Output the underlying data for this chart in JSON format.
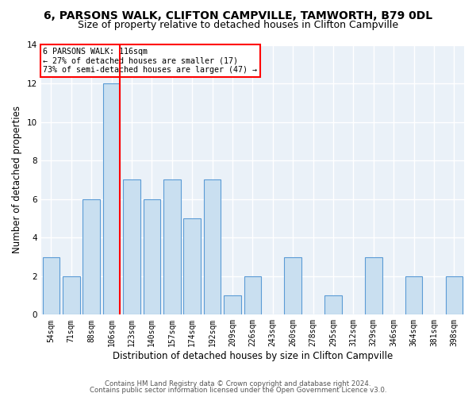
{
  "title1": "6, PARSONS WALK, CLIFTON CAMPVILLE, TAMWORTH, B79 0DL",
  "title2": "Size of property relative to detached houses in Clifton Campville",
  "xlabel": "Distribution of detached houses by size in Clifton Campville",
  "ylabel": "Number of detached properties",
  "categories": [
    "54sqm",
    "71sqm",
    "88sqm",
    "106sqm",
    "123sqm",
    "140sqm",
    "157sqm",
    "174sqm",
    "192sqm",
    "209sqm",
    "226sqm",
    "243sqm",
    "260sqm",
    "278sqm",
    "295sqm",
    "312sqm",
    "329sqm",
    "346sqm",
    "364sqm",
    "381sqm",
    "398sqm"
  ],
  "values": [
    3,
    2,
    6,
    12,
    7,
    6,
    7,
    5,
    7,
    1,
    2,
    0,
    3,
    0,
    1,
    0,
    3,
    0,
    2,
    0,
    2
  ],
  "bar_color": "#c9dff0",
  "bar_edge_color": "#5b9bd5",
  "ref_bar_index": 3,
  "annotation_title": "6 PARSONS WALK: 116sqm",
  "annotation_line1": "← 27% of detached houses are smaller (17)",
  "annotation_line2": "73% of semi-detached houses are larger (47) →",
  "footer1": "Contains HM Land Registry data © Crown copyright and database right 2024.",
  "footer2": "Contains public sector information licensed under the Open Government Licence v3.0.",
  "ylim": [
    0,
    14
  ],
  "yticks": [
    0,
    2,
    4,
    6,
    8,
    10,
    12,
    14
  ],
  "bg_color": "#eaf1f8",
  "grid_color": "#ffffff",
  "title1_fontsize": 10,
  "title2_fontsize": 9,
  "ylabel_fontsize": 8.5,
  "xlabel_fontsize": 8.5,
  "tick_fontsize": 7
}
